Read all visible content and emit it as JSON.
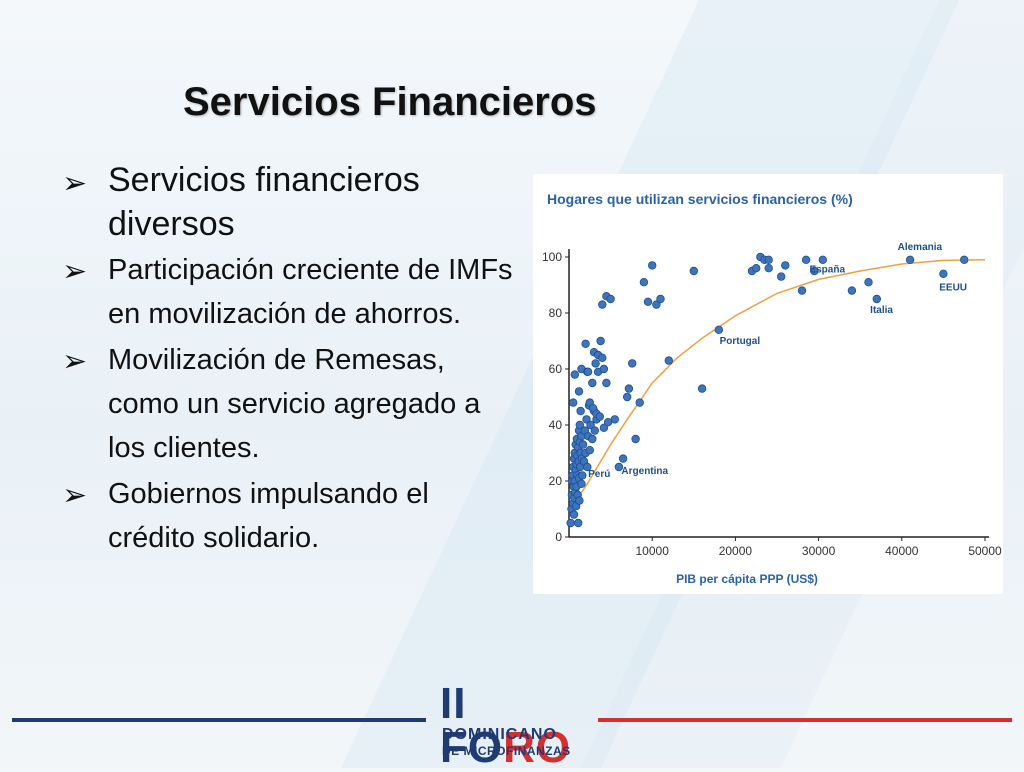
{
  "slide": {
    "title": "Servicios Financieros",
    "bullets": [
      "Servicios financieros diversos",
      "Participación creciente de IMFs en movilización de ahorros.",
      "Movilización de Remesas, como un servicio agregado a los clientes.",
      "Gobiernos impulsando el crédito solidario."
    ],
    "bullet_icon": "arrow-bullet-icon"
  },
  "logo": {
    "line1_a": "II FO",
    "line1_b": "RO",
    "line2": "DOMINICANO",
    "line3": "DE MICROFINANZAS"
  },
  "colors": {
    "title": "#111111",
    "chart_title": "#2a62a8",
    "point": "#3d74bd",
    "point_stroke": "#1e4f8c",
    "curve": "#f0a040",
    "axis": "#222222",
    "footer_blue": "#1f3b73",
    "footer_red": "#d62f2f"
  },
  "chart_data": {
    "type": "scatter",
    "title": "Hogares que utilizan servicios financieros (%)",
    "xlabel": "PIB per cápita PPP (US$)",
    "ylabel": "",
    "xlim": [
      0,
      50000
    ],
    "ylim": [
      0,
      100
    ],
    "xticks": [
      "10000",
      "20000",
      "30000",
      "40000",
      "50000"
    ],
    "yticks": [
      "0",
      "20",
      "40",
      "60",
      "80",
      "100"
    ],
    "points": [
      [
        200,
        5
      ],
      [
        300,
        10
      ],
      [
        350,
        15
      ],
      [
        400,
        20
      ],
      [
        450,
        22
      ],
      [
        500,
        25
      ],
      [
        500,
        12
      ],
      [
        550,
        18
      ],
      [
        600,
        28
      ],
      [
        600,
        8
      ],
      [
        650,
        14
      ],
      [
        700,
        30
      ],
      [
        700,
        20
      ],
      [
        750,
        16
      ],
      [
        800,
        33
      ],
      [
        800,
        24
      ],
      [
        850,
        11
      ],
      [
        900,
        26
      ],
      [
        900,
        18
      ],
      [
        950,
        35
      ],
      [
        1000,
        29
      ],
      [
        1000,
        22
      ],
      [
        1050,
        15
      ],
      [
        1100,
        32
      ],
      [
        1100,
        5
      ],
      [
        1150,
        27
      ],
      [
        1200,
        38
      ],
      [
        1200,
        21
      ],
      [
        1250,
        13
      ],
      [
        1300,
        34
      ],
      [
        1300,
        40
      ],
      [
        1350,
        25
      ],
      [
        1400,
        30
      ],
      [
        1400,
        45
      ],
      [
        1500,
        19
      ],
      [
        1500,
        36
      ],
      [
        1550,
        28
      ],
      [
        1600,
        22
      ],
      [
        1700,
        33
      ],
      [
        1800,
        27
      ],
      [
        1900,
        38
      ],
      [
        2000,
        30
      ],
      [
        2100,
        42
      ],
      [
        2200,
        25
      ],
      [
        2300,
        36
      ],
      [
        2400,
        47
      ],
      [
        2500,
        31
      ],
      [
        2600,
        40
      ],
      [
        2800,
        35
      ],
      [
        3000,
        45
      ],
      [
        3100,
        38
      ],
      [
        3300,
        42
      ],
      [
        500,
        48
      ],
      [
        700,
        58
      ],
      [
        1200,
        52
      ],
      [
        1500,
        60
      ],
      [
        2000,
        69
      ],
      [
        2200,
        59
      ],
      [
        2500,
        48
      ],
      [
        2800,
        55
      ],
      [
        3000,
        66
      ],
      [
        3200,
        62
      ],
      [
        3500,
        59
      ],
      [
        3500,
        65
      ],
      [
        3800,
        70
      ],
      [
        4000,
        64
      ],
      [
        4200,
        60
      ],
      [
        4500,
        55
      ],
      [
        4000,
        83
      ],
      [
        4500,
        86
      ],
      [
        5000,
        85
      ],
      [
        2300,
        59
      ],
      [
        2900,
        46
      ],
      [
        3300,
        44
      ],
      [
        3700,
        43
      ],
      [
        4200,
        39
      ],
      [
        4700,
        41
      ],
      [
        5500,
        42
      ],
      [
        6000,
        25
      ],
      [
        6500,
        28
      ],
      [
        7000,
        50
      ],
      [
        7200,
        53
      ],
      [
        7600,
        62
      ],
      [
        8000,
        35
      ],
      [
        8500,
        48
      ],
      [
        9000,
        91
      ],
      [
        9500,
        84
      ],
      [
        10000,
        97
      ],
      [
        10500,
        83
      ],
      [
        11000,
        85
      ],
      [
        12000,
        63
      ],
      [
        15000,
        95
      ],
      [
        16000,
        53
      ],
      [
        18000,
        74
      ],
      [
        22000,
        95
      ],
      [
        22500,
        96
      ],
      [
        23000,
        100
      ],
      [
        23500,
        99
      ],
      [
        24000,
        96
      ],
      [
        24000,
        99
      ],
      [
        25500,
        93
      ],
      [
        26000,
        97
      ],
      [
        28000,
        88
      ],
      [
        28500,
        99
      ],
      [
        29500,
        95
      ],
      [
        30500,
        99
      ],
      [
        34000,
        88
      ],
      [
        36000,
        91
      ],
      [
        37000,
        85
      ],
      [
        41000,
        99
      ],
      [
        45000,
        94
      ],
      [
        47500,
        99
      ]
    ],
    "fit_curve": [
      [
        0,
        10
      ],
      [
        1000,
        14
      ],
      [
        2000,
        18
      ],
      [
        3000,
        23
      ],
      [
        4000,
        28
      ],
      [
        5000,
        33
      ],
      [
        7000,
        42
      ],
      [
        10000,
        55
      ],
      [
        13000,
        64
      ],
      [
        16000,
        71
      ],
      [
        20000,
        79
      ],
      [
        25000,
        87
      ],
      [
        30000,
        92
      ],
      [
        35000,
        95
      ],
      [
        40000,
        97.5
      ],
      [
        45000,
        98.8
      ],
      [
        50000,
        99
      ]
    ],
    "annotations": [
      {
        "text": "Alemania",
        "x": 39500,
        "y": 102.5
      },
      {
        "text": "España",
        "x": 28900,
        "y": 94.5
      },
      {
        "text": "EEUU",
        "x": 44500,
        "y": 88
      },
      {
        "text": "Italia",
        "x": 36200,
        "y": 80
      },
      {
        "text": "Portugal",
        "x": 18100,
        "y": 69
      },
      {
        "text": "Perú",
        "x": 2300,
        "y": 21.5
      },
      {
        "text": "Argentina",
        "x": 6300,
        "y": 22.5
      }
    ]
  }
}
